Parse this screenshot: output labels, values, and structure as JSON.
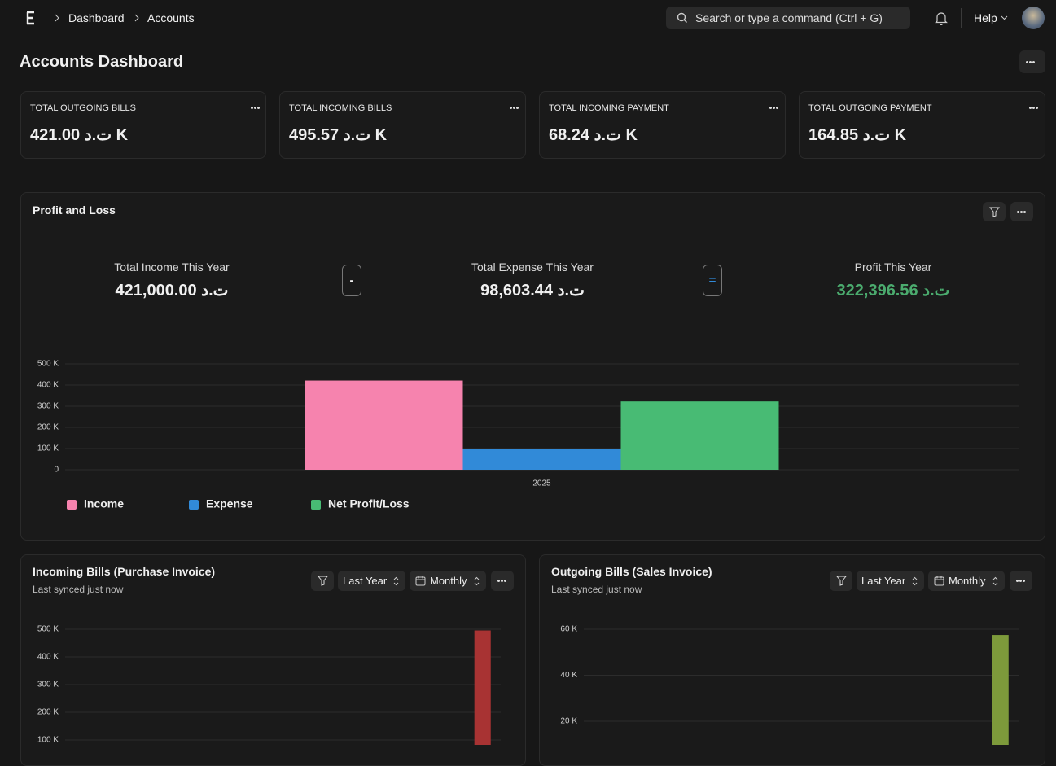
{
  "navbar": {
    "breadcrumbs": [
      "Dashboard",
      "Accounts"
    ],
    "search_placeholder": "Search or type a command (Ctrl + G)",
    "help": "Help"
  },
  "header": {
    "title": "Accounts Dashboard"
  },
  "number_cards": [
    {
      "label": "TOTAL OUTGOING BILLS",
      "value": "421.00 ت.د K"
    },
    {
      "label": "TOTAL INCOMING BILLS",
      "value": "495.57 ت.د K"
    },
    {
      "label": "TOTAL INCOMING PAYMENT",
      "value": "68.24 ت.د K"
    },
    {
      "label": "TOTAL OUTGOING PAYMENT",
      "value": "164.85 ت.د K"
    }
  ],
  "profit_and_loss": {
    "title": "Profit and Loss",
    "summary": [
      {
        "label": "Total Income This Year",
        "value": "421,000.00 ت.د"
      },
      {
        "label": "Total Expense This Year",
        "value": "98,603.44 ت.د"
      },
      {
        "label": "Profit This Year",
        "value": "322,396.56 ت.د"
      }
    ],
    "operators": [
      "-",
      "="
    ],
    "chart_data": {
      "type": "bar",
      "categories": [
        "2025"
      ],
      "series": [
        {
          "name": "Income",
          "color": "#f683ae",
          "values": [
            421000
          ]
        },
        {
          "name": "Expense",
          "color": "#318ad8",
          "values": [
            98603.44
          ]
        },
        {
          "name": "Net Profit/Loss",
          "color": "#48bb74",
          "values": [
            322396.56
          ]
        }
      ],
      "ylim": [
        0,
        500000
      ],
      "yticks": [
        0,
        {
          "value": 100000,
          "label": "100 K"
        },
        {
          "value": 200000,
          "label": "200 K"
        },
        {
          "value": 300000,
          "label": "300 K"
        },
        {
          "value": 400000,
          "label": "400 K"
        },
        {
          "value": 500000,
          "label": "500 K"
        }
      ],
      "grid": true
    }
  },
  "incoming_bills": {
    "title": "Incoming Bills (Purchase Invoice)",
    "subtitle": "Last synced just now",
    "filters": [
      "Last Year",
      "Monthly"
    ],
    "chart_data": {
      "type": "bar",
      "categories": [
        null,
        null,
        null,
        null,
        null,
        null,
        null,
        null,
        null,
        null,
        null,
        null
      ],
      "series": [
        {
          "color": "#a83333",
          "values": [
            0,
            0,
            0,
            0,
            0,
            0,
            0,
            0,
            0,
            0,
            0,
            495570
          ]
        }
      ],
      "ylim": [
        0,
        500000
      ],
      "yticks": [
        {
          "value": 100000,
          "label": "100 K"
        },
        {
          "value": 200000,
          "label": "200 K"
        },
        {
          "value": 300000,
          "label": "300 K"
        },
        {
          "value": 400000,
          "label": "400 K"
        },
        {
          "value": 500000,
          "label": "500 K"
        }
      ],
      "grid": true
    }
  },
  "outgoing_bills": {
    "title": "Outgoing Bills (Sales Invoice)",
    "subtitle": "Last synced just now",
    "filters": [
      "Last Year",
      "Monthly"
    ],
    "chart_data": {
      "type": "bar",
      "categories": [
        null,
        null,
        null,
        null,
        null,
        null,
        null,
        null,
        null,
        null,
        null,
        null
      ],
      "series": [
        {
          "color": "#7d9a3b",
          "values": [
            0,
            0,
            0,
            0,
            0,
            0,
            0,
            0,
            0,
            0,
            0,
            57500
          ]
        }
      ],
      "ylim": [
        0,
        60000
      ],
      "yticks": [
        {
          "value": 20000,
          "label": "20 K"
        },
        {
          "value": 40000,
          "label": "40 K"
        },
        {
          "value": 60000,
          "label": "60 K"
        }
      ],
      "grid": true
    }
  }
}
